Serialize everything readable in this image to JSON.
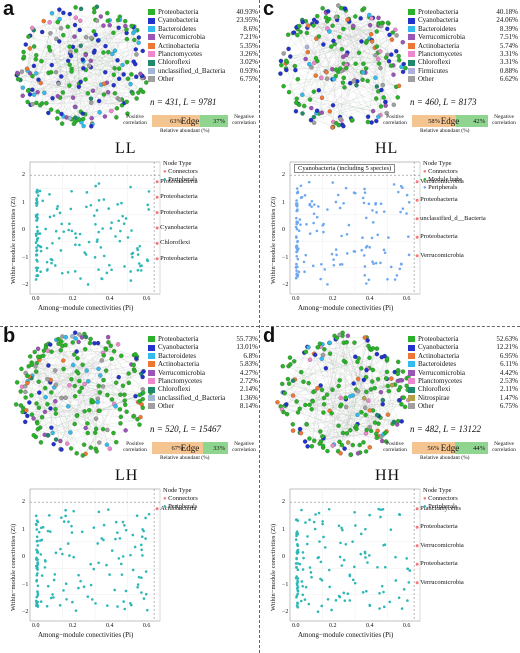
{
  "panels": [
    {
      "id": "a",
      "group": "LL",
      "legend": [
        {
          "name": "Proteobacteria",
          "value": "40.93%",
          "color": "#2ab32a"
        },
        {
          "name": "Cyanobacteria",
          "value": "23.95%",
          "color": "#2233cc"
        },
        {
          "name": "Bacteroidetes",
          "value": "8.6%",
          "color": "#33bbee"
        },
        {
          "name": "Verrucomicrobia",
          "value": "7.21%",
          "color": "#9b55b5"
        },
        {
          "name": "Actinobacteria",
          "value": "5.35%",
          "color": "#ee7733"
        },
        {
          "name": "Planctomycetes",
          "value": "3.26%",
          "color": "#ee88cc"
        },
        {
          "name": "Chloroflexi",
          "value": "3.02%",
          "color": "#1f8a6b"
        },
        {
          "name": "unclassified_d_Bacteria",
          "value": "0.93%",
          "color": "#a3b8d9"
        },
        {
          "name": "Other",
          "value": "6.75%",
          "color": "#a0a0a0"
        }
      ],
      "n": "n = 431, L = 9781",
      "pos_pct": "63%",
      "neg_pct": "37%",
      "pos_frac": 0.63,
      "node_types": [
        "Connectors",
        "Peripherals"
      ],
      "annotations": [
        "Proteobacteria",
        "Proteobacteria",
        "Proteobacteria",
        "Cyanobacteria",
        "Chloroflexi",
        "Proteobacteria"
      ],
      "inset_title": ""
    },
    {
      "id": "c",
      "group": "HL",
      "legend": [
        {
          "name": "Proteobacteria",
          "value": "40.18%",
          "color": "#2ab32a"
        },
        {
          "name": "Cyanobacteria",
          "value": "24.06%",
          "color": "#2233cc"
        },
        {
          "name": "Bacteroidetes",
          "value": "8.39%",
          "color": "#33bbee"
        },
        {
          "name": "Verrucomicrobia",
          "value": "7.51%",
          "color": "#9b55b5"
        },
        {
          "name": "Actinobacteria",
          "value": "5.74%",
          "color": "#ee7733"
        },
        {
          "name": "Planctomycetes",
          "value": "3.31%",
          "color": "#ee88cc"
        },
        {
          "name": "Chloroflexi",
          "value": "3.31%",
          "color": "#1f8a6b"
        },
        {
          "name": "Firmicutes",
          "value": "0.88%",
          "color": "#b0b0e0"
        },
        {
          "name": "Other",
          "value": "6.62%",
          "color": "#a0a0a0"
        }
      ],
      "n": "n = 460, L = 8173",
      "pos_pct": "58%",
      "neg_pct": "42%",
      "pos_frac": 0.58,
      "node_types": [
        "Connectors",
        "Module hubs",
        "Peripherals"
      ],
      "annotations": [
        "Verrucomicrobia",
        "Proteobacteria",
        "unclassified_d__Bacteria",
        "Proteobacteria",
        "Verrucomicrobia"
      ],
      "inset_title": "Cyanobacteria (including 5 species)"
    },
    {
      "id": "b",
      "group": "LH",
      "legend": [
        {
          "name": "Proteobacteria",
          "value": "55.73%",
          "color": "#2ab32a"
        },
        {
          "name": "Cyanobacteria",
          "value": "13.01%",
          "color": "#2233cc"
        },
        {
          "name": "Bacteroidetes",
          "value": "6.8%",
          "color": "#33bbee"
        },
        {
          "name": "Actinobacteria",
          "value": "5.83%",
          "color": "#ee7733"
        },
        {
          "name": "Verrucomicrobia",
          "value": "4.27%",
          "color": "#9b55b5"
        },
        {
          "name": "Planctomycetes",
          "value": "2.72%",
          "color": "#ee88cc"
        },
        {
          "name": "Chloroflexi",
          "value": "2.14%",
          "color": "#1f8a6b"
        },
        {
          "name": "unclassified_d_Bacteria",
          "value": "1.36%",
          "color": "#a3b8d9"
        },
        {
          "name": "Other",
          "value": "8.14%",
          "color": "#a0a0a0"
        }
      ],
      "n": "n = 520, L = 15467",
      "pos_pct": "67%",
      "neg_pct": "33%",
      "pos_frac": 0.67,
      "node_types": [
        "Connectors",
        "Peripherals"
      ],
      "annotations": [
        "Acidobacteria"
      ],
      "inset_title": ""
    },
    {
      "id": "d",
      "group": "HH",
      "legend": [
        {
          "name": "Proteobacteria",
          "value": "52.63%",
          "color": "#2ab32a"
        },
        {
          "name": "Cyanobacteria",
          "value": "12.21%",
          "color": "#2233cc"
        },
        {
          "name": "Actinobacteria",
          "value": "6.95%",
          "color": "#ee7733"
        },
        {
          "name": "Bacteroidetes",
          "value": "6.11%",
          "color": "#33bbee"
        },
        {
          "name": "Verrucomicrobia",
          "value": "4.42%",
          "color": "#9b55b5"
        },
        {
          "name": "Planctomycetes",
          "value": "2.53%",
          "color": "#ee88cc"
        },
        {
          "name": "Chloroflexi",
          "value": "2.11%",
          "color": "#1f8a6b"
        },
        {
          "name": "Nitrospirae",
          "value": "1.47%",
          "color": "#b5a04a"
        },
        {
          "name": "Other",
          "value": "6.75%",
          "color": "#a0a0a0"
        }
      ],
      "n": "n = 482, L = 13122",
      "pos_pct": "56%",
      "neg_pct": "44%",
      "pos_frac": 0.56,
      "node_types": [
        "Connectors",
        "Peripherals"
      ],
      "annotations": [
        "Planctomycetes",
        "Proteobacteria",
        "Verrucomicrobia",
        "Proteobacteria",
        "Verrucomicrobia"
      ],
      "inset_title": ""
    }
  ],
  "bar_labels": {
    "positive": "Positive correlation",
    "edge": "Edge",
    "negative": "Negative correlation",
    "relative": "Relative abundant (%)"
  },
  "scatter_labels": {
    "node_type": "Node Type",
    "xlabel": "Among−module conectivities (Pi)",
    "ylabel": "Within−module conectivities (Zi)",
    "xticks": [
      "0.0",
      "0.2",
      "0.4",
      "0.6"
    ],
    "yticks": [
      "2",
      "1",
      "0",
      "−1",
      "−2"
    ]
  }
}
